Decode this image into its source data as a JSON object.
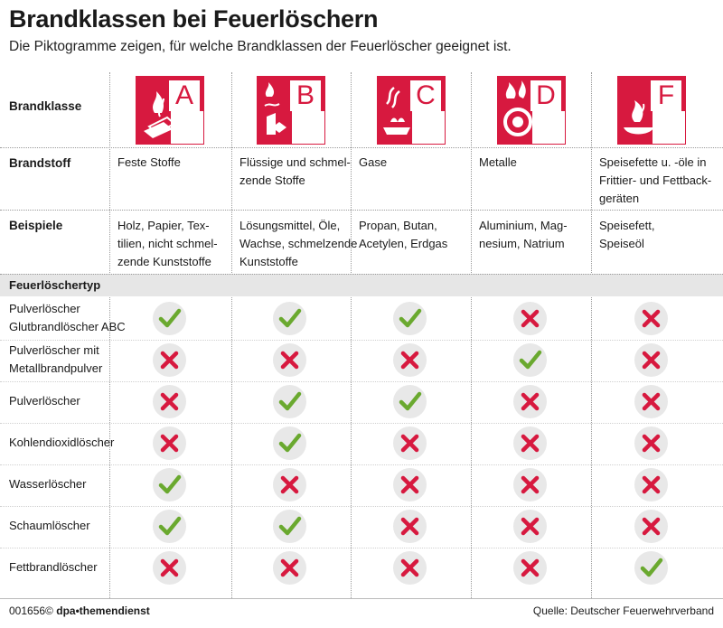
{
  "header": {
    "title": "Brandklassen bei Feuerlöschern",
    "subtitle": "Die Piktogramme zeigen, für welche Brandklassen der Feuerlöscher geeignet ist."
  },
  "row_labels": {
    "brandklasse": "Brandklasse",
    "brandstoff": "Brandstoff",
    "beispiele": "Beispiele",
    "feuerloeschertyp": "Feuerlöschertyp"
  },
  "classes": [
    {
      "letter": "A",
      "brandstoff": [
        "Feste Stoffe"
      ],
      "beispiele": [
        "Holz, Papier, Tex-",
        "tilien, nicht schmel-",
        "zende Kunststoffe"
      ]
    },
    {
      "letter": "B",
      "brandstoff": [
        "Flüssige und schmel-",
        "zende Stoffe"
      ],
      "beispiele": [
        "Lösungsmittel, Öle,",
        "Wachse, schmelzende",
        "Kunststoffe"
      ]
    },
    {
      "letter": "C",
      "brandstoff": [
        "Gase"
      ],
      "beispiele": [
        "Propan, Butan,",
        "Acetylen, Erdgas"
      ]
    },
    {
      "letter": "D",
      "brandstoff": [
        "Metalle"
      ],
      "beispiele": [
        "Aluminium, Mag-",
        "nesium, Natrium"
      ]
    },
    {
      "letter": "F",
      "brandstoff": [
        "Speisefette u. -öle in",
        "Frittier- und Fettback-",
        "geräten"
      ],
      "beispiele": [
        "Speisefett,",
        "Speiseöl"
      ]
    }
  ],
  "extinguishers": [
    {
      "name": [
        "Pulverlöscher",
        "Glutbrandlöscher ABC"
      ],
      "suitable": [
        true,
        true,
        true,
        false,
        false
      ]
    },
    {
      "name": [
        "Pulverlöscher mit",
        "Metallbrandpulver"
      ],
      "suitable": [
        false,
        false,
        false,
        true,
        false
      ]
    },
    {
      "name": [
        "Pulverlöscher"
      ],
      "suitable": [
        false,
        true,
        true,
        false,
        false
      ]
    },
    {
      "name": [
        "Kohlendioxidlöscher"
      ],
      "suitable": [
        false,
        true,
        false,
        false,
        false
      ]
    },
    {
      "name": [
        "Wasserlöscher"
      ],
      "suitable": [
        true,
        false,
        false,
        false,
        false
      ]
    },
    {
      "name": [
        "Schaumlöscher"
      ],
      "suitable": [
        true,
        true,
        false,
        false,
        false
      ]
    },
    {
      "name": [
        "Fettbrandlöscher"
      ],
      "suitable": [
        false,
        false,
        false,
        false,
        true
      ]
    }
  ],
  "footer": {
    "code": "001656©",
    "agency": "dpa•themendienst",
    "source": "Quelle: Deutscher Feuerwehrverband"
  },
  "colors": {
    "red": "#d7193f",
    "check_green": "#6aa92f",
    "cross_red": "#d7193f",
    "icon_bg": "#e8e8e8",
    "section_bg": "#e6e6e6"
  },
  "icons": {
    "suitable": "check-icon",
    "not_suitable": "cross-icon"
  }
}
